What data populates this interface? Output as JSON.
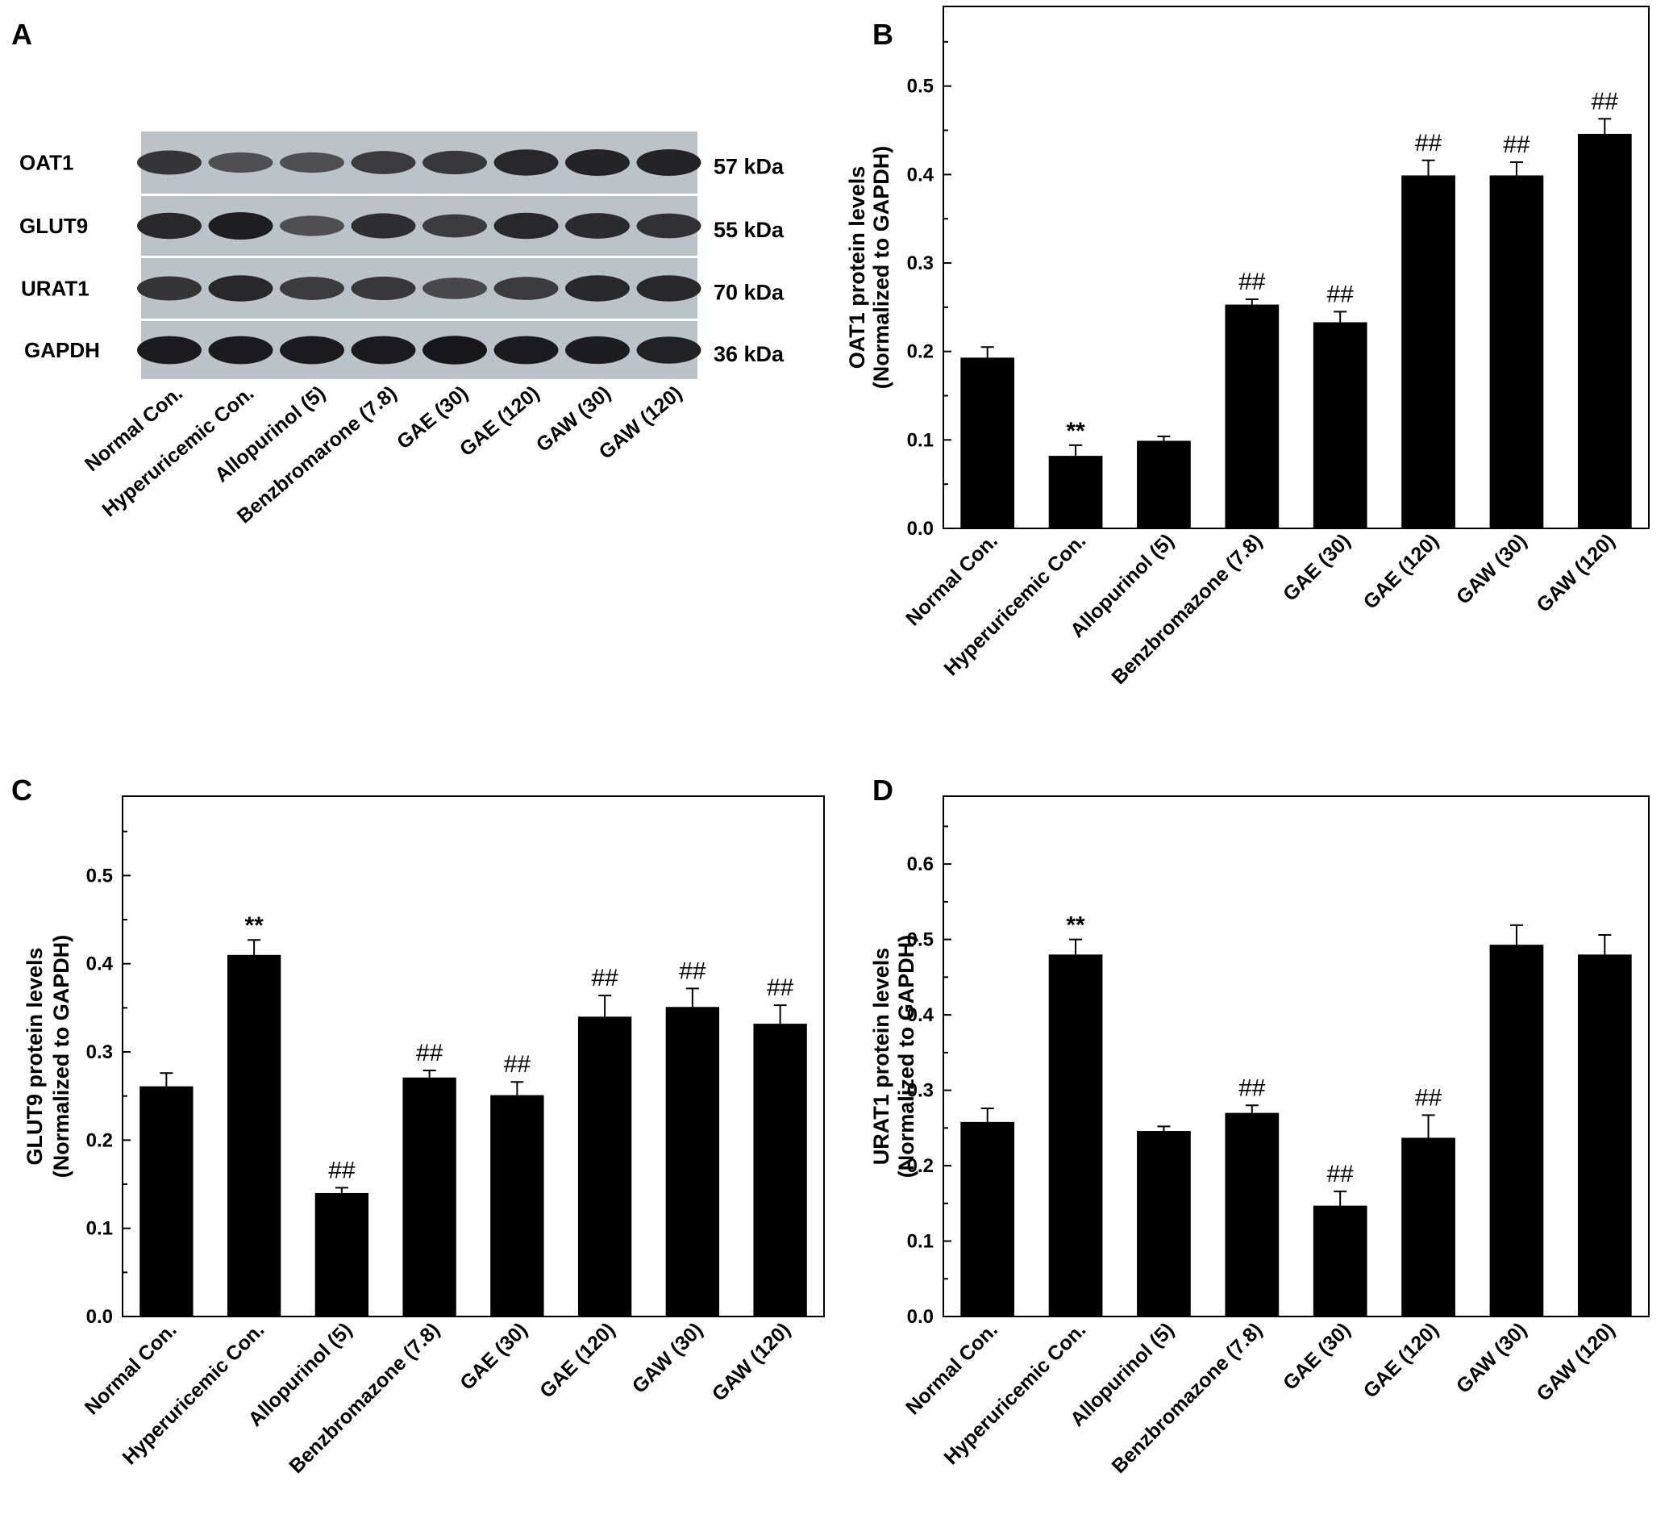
{
  "panel_a": {
    "letter": "A",
    "rows": [
      {
        "protein": "OAT1",
        "kda": "57 kDa",
        "intensity": [
          0.75,
          0.55,
          0.55,
          0.7,
          0.72,
          0.85,
          0.88,
          0.88
        ]
      },
      {
        "protein": "GLUT9",
        "kda": "55 kDa",
        "intensity": [
          0.85,
          0.92,
          0.55,
          0.8,
          0.7,
          0.85,
          0.82,
          0.78
        ]
      },
      {
        "protein": "URAT1",
        "kda": "70 kDa",
        "intensity": [
          0.75,
          0.85,
          0.7,
          0.72,
          0.6,
          0.7,
          0.85,
          0.85
        ]
      },
      {
        "protein": "GAPDH",
        "kda": "36 kDa",
        "intensity": [
          0.95,
          0.95,
          0.95,
          0.95,
          0.98,
          0.95,
          0.93,
          0.9
        ]
      }
    ],
    "lanes": [
      "Normal Con.",
      "Hyperuricemic Con.",
      "Allopurinol  (5)",
      "Benzbromarone (7.8)",
      "GAE (30)",
      "GAE (120)",
      "GAW (30)",
      "GAW (120)"
    ]
  },
  "chart_data": [
    {
      "panel": "B",
      "type": "bar",
      "ylabel_line1": "OAT1 protein levels",
      "ylabel_line2": "(Normalized to GAPDH)",
      "ylim": [
        0,
        0.59
      ],
      "yticks": [
        0.0,
        0.1,
        0.2,
        0.3,
        0.4,
        0.5
      ],
      "ytick_labels": [
        "0.0",
        "0.1",
        "0.2",
        "0.3",
        "0.4",
        "0.5"
      ],
      "categories": [
        "Normal Con.",
        "Hyperuricemic Con.",
        "Allopurinol (5)",
        "Benzbromazone (7.8)",
        "GAE (30)",
        "GAE (120)",
        "GAW (30)",
        "GAW (120)"
      ],
      "values": [
        0.193,
        0.082,
        0.099,
        0.253,
        0.233,
        0.399,
        0.399,
        0.446
      ],
      "errors": [
        0.012,
        0.012,
        0.005,
        0.006,
        0.012,
        0.017,
        0.015,
        0.017
      ],
      "annotations": [
        "",
        "**",
        "",
        "##",
        "##",
        "##",
        "##",
        "##"
      ]
    },
    {
      "panel": "C",
      "type": "bar",
      "ylabel_line1": "GLUT9 protein levels",
      "ylabel_line2": "(Normalized to GAPDH)",
      "ylim": [
        0,
        0.59
      ],
      "yticks": [
        0.0,
        0.1,
        0.2,
        0.3,
        0.4,
        0.5
      ],
      "ytick_labels": [
        "0.0",
        "0.1",
        "0.2",
        "0.3",
        "0.4",
        "0.5"
      ],
      "categories": [
        "Normal Con.",
        "Hyperuricemic Con.",
        "Allopurinol (5)",
        "Benzbromazone (7.8)",
        "GAE (30)",
        "GAE (120)",
        "GAW (30)",
        "GAW (120)"
      ],
      "values": [
        0.261,
        0.41,
        0.14,
        0.271,
        0.251,
        0.34,
        0.351,
        0.332
      ],
      "errors": [
        0.015,
        0.017,
        0.006,
        0.008,
        0.015,
        0.024,
        0.021,
        0.021
      ],
      "annotations": [
        "",
        "**",
        "##",
        "##",
        "##",
        "##",
        "##",
        "##"
      ]
    },
    {
      "panel": "D",
      "type": "bar",
      "ylabel_line1": "URAT1 protein levels",
      "ylabel_line2": "(Normalized to GAPDH)",
      "ylim": [
        0,
        0.69
      ],
      "yticks": [
        0.0,
        0.1,
        0.2,
        0.3,
        0.4,
        0.5,
        0.6
      ],
      "ytick_labels": [
        "0.0",
        "0.1",
        "0.2",
        "0.3",
        "0.4",
        "0.5",
        "0.6"
      ],
      "categories": [
        "Normal Con.",
        "Hyperuricemic Con.",
        "Allopurinol (5)",
        "Benzbromazone (7.8)",
        "GAE (30)",
        "GAE (120)",
        "GAW (30)",
        "GAW (120)"
      ],
      "values": [
        0.258,
        0.48,
        0.246,
        0.27,
        0.147,
        0.237,
        0.493,
        0.48
      ],
      "errors": [
        0.018,
        0.02,
        0.006,
        0.01,
        0.019,
        0.03,
        0.026,
        0.026
      ],
      "annotations": [
        "",
        "**",
        "",
        "##",
        "##",
        "##",
        "",
        ""
      ]
    }
  ]
}
